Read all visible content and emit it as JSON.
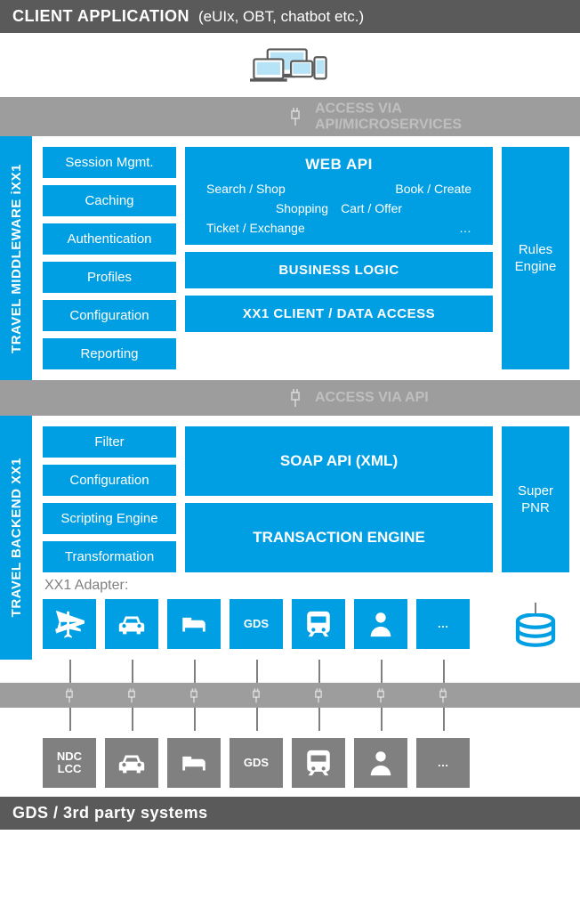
{
  "colors": {
    "primary": "#009fe3",
    "gray_bar": "#5a5a5a",
    "gray_light": "#9d9d9d",
    "gray_tile": "#808080",
    "white": "#ffffff",
    "watermark": "rgba(255,255,255,0.4)"
  },
  "header": {
    "title": "CLIENT APPLICATION",
    "subtitle": "(eUIx, OBT, chatbot etc.)"
  },
  "divider1": {
    "watermark_line1": "ACCESS VIA",
    "watermark_line2": "API/MICROSERVICES"
  },
  "middleware": {
    "tab": "TRAVEL MIDDLEWARE iXX1",
    "left": [
      "Session Mgmt.",
      "Caching",
      "Authentication",
      "Profiles",
      "Configuration",
      "Reporting"
    ],
    "webapi": {
      "title": "WEB API",
      "rows": [
        [
          "Search / Shop",
          "Book / Create"
        ],
        [
          "Shopping",
          "Cart / Offer"
        ],
        [
          "Ticket / Exchange",
          "…"
        ]
      ]
    },
    "business_logic": "BUSINESS LOGIC",
    "data_access": "XX1 CLIENT / DATA ACCESS",
    "right_label1": "Rules",
    "right_label2": "Engine"
  },
  "divider2": {
    "watermark": "ACCESS VIA API"
  },
  "backend": {
    "tab": "TRAVEL BACKEND XX1",
    "left": [
      "Filter",
      "Configuration",
      "Scripting Engine",
      "Transformation"
    ],
    "soap": "SOAP API (XML)",
    "txn": "TRANSACTION ENGINE",
    "right_label1": "Super",
    "right_label2": "PNR",
    "adapter_label": "XX1 Adapter:",
    "adapters": [
      {
        "type": "icon",
        "name": "plane"
      },
      {
        "type": "icon",
        "name": "car"
      },
      {
        "type": "icon",
        "name": "bed"
      },
      {
        "type": "text",
        "label": "GDS"
      },
      {
        "type": "icon",
        "name": "train"
      },
      {
        "type": "icon",
        "name": "person"
      },
      {
        "type": "text",
        "label": "…"
      }
    ]
  },
  "external": {
    "tiles": [
      {
        "type": "text",
        "label": "NDC LCC"
      },
      {
        "type": "icon",
        "name": "car"
      },
      {
        "type": "icon",
        "name": "bed"
      },
      {
        "type": "text",
        "label": "GDS"
      },
      {
        "type": "icon",
        "name": "train"
      },
      {
        "type": "icon",
        "name": "person"
      },
      {
        "type": "text",
        "label": "…"
      }
    ]
  },
  "footer": {
    "title": "GDS / 3rd party systems"
  }
}
